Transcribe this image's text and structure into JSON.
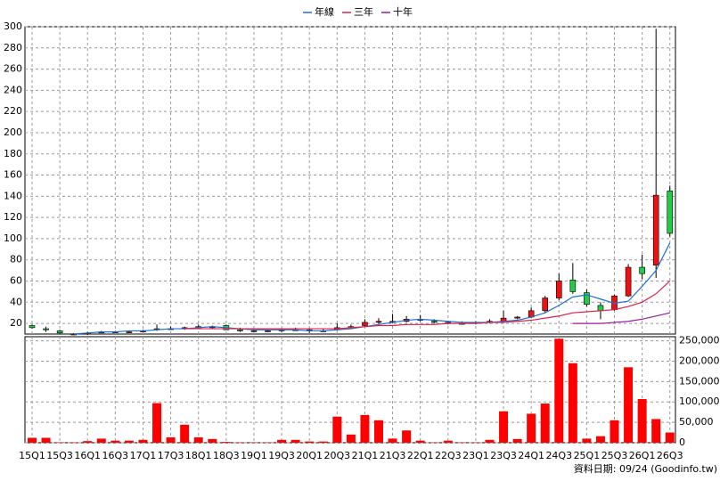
{
  "chart_data": [
    {
      "type": "candlestick",
      "categories": [
        "15Q1",
        null,
        "15Q3",
        null,
        "16Q1",
        null,
        "16Q3",
        null,
        "17Q1",
        null,
        "17Q3",
        null,
        "18Q1",
        null,
        "18Q3",
        null,
        "19Q1",
        null,
        "19Q3",
        null,
        "20Q1",
        null,
        "20Q3",
        null,
        "21Q1",
        null,
        "21Q3",
        null,
        "22Q1",
        null,
        "22Q3",
        null,
        "23Q1",
        null,
        "23Q3",
        null,
        "24Q1",
        null,
        "24Q3",
        null,
        "25Q1",
        null,
        "25Q3",
        null,
        "26Q1",
        null,
        "26Q3"
      ],
      "open": [
        18,
        15,
        13,
        10,
        10,
        11,
        12,
        12,
        12,
        14,
        15,
        15,
        16,
        16,
        18,
        14,
        13,
        13,
        13,
        14,
        14,
        13,
        14,
        16,
        18,
        21,
        21,
        22,
        23,
        22,
        21,
        20,
        20,
        21,
        22,
        25,
        26,
        32,
        44,
        61,
        49,
        37,
        33,
        46,
        73,
        75,
        145
      ],
      "high": [
        19,
        17,
        14,
        11,
        12,
        13,
        13,
        13,
        14,
        19,
        17,
        17,
        19,
        18,
        19,
        16,
        14,
        14,
        15,
        16,
        15,
        15,
        20,
        19,
        24,
        25,
        29,
        27,
        28,
        24,
        22,
        22,
        22,
        24,
        32,
        27,
        35,
        46,
        67,
        77,
        52,
        40,
        47,
        76,
        85,
        298,
        150
      ],
      "low": [
        15,
        12,
        10,
        9,
        9,
        11,
        11,
        11,
        12,
        13,
        14,
        14,
        15,
        15,
        14,
        12,
        12,
        12,
        12,
        13,
        11,
        12,
        13,
        15,
        17,
        20,
        20,
        21,
        22,
        20,
        19,
        19,
        19,
        20,
        21,
        24,
        25,
        30,
        42,
        48,
        36,
        24,
        32,
        45,
        62,
        63,
        102
      ],
      "close": [
        16,
        14,
        11,
        10,
        11,
        12,
        12,
        12,
        13,
        15,
        15,
        16,
        17,
        17,
        14,
        13,
        13,
        13,
        14,
        14,
        13,
        13,
        16,
        17,
        21,
        22,
        22,
        24,
        24,
        21,
        20,
        20,
        21,
        22,
        25,
        26,
        32,
        44,
        60,
        50,
        38,
        32,
        46,
        73,
        67,
        141,
        105
      ],
      "up_color": "#ee1111",
      "down_color": "#22cc44",
      "series": [
        {
          "name": "年線",
          "color": "#1f6fd1",
          "values": [
            null,
            null,
            null,
            10,
            11,
            12,
            12,
            13,
            13,
            14,
            15,
            15,
            16,
            17,
            16,
            15,
            14,
            14,
            14,
            14,
            13,
            13,
            14,
            15,
            17,
            19,
            21,
            23,
            24,
            23,
            22,
            21,
            21,
            21,
            22,
            23,
            26,
            30,
            37,
            45,
            47,
            43,
            39,
            41,
            55,
            70,
            96
          ]
        },
        {
          "name": "三年",
          "color": "#e0204a",
          "values": [
            null,
            null,
            null,
            null,
            null,
            null,
            null,
            null,
            null,
            null,
            null,
            15,
            15,
            15,
            15,
            15,
            15,
            15,
            15,
            15,
            15,
            15,
            15,
            16,
            17,
            18,
            18,
            19,
            19,
            19,
            20,
            20,
            20,
            21,
            21,
            22,
            23,
            25,
            27,
            30,
            31,
            32,
            33,
            36,
            40,
            48,
            60
          ]
        },
        {
          "name": "十年",
          "color": "#9a1a9a",
          "values": [
            null,
            null,
            null,
            null,
            null,
            null,
            null,
            null,
            null,
            null,
            null,
            null,
            null,
            null,
            null,
            null,
            null,
            null,
            null,
            null,
            null,
            null,
            null,
            null,
            null,
            null,
            null,
            null,
            null,
            null,
            null,
            null,
            null,
            null,
            null,
            null,
            null,
            null,
            null,
            20,
            20,
            20,
            21,
            22,
            24,
            27,
            30
          ]
        }
      ],
      "ylim": [
        10,
        300
      ],
      "yticks": [
        20,
        40,
        60,
        80,
        100,
        120,
        140,
        160,
        180,
        200,
        220,
        240,
        260,
        280,
        300
      ],
      "grid": true
    },
    {
      "type": "bar",
      "color": "#ff0000",
      "values": [
        12000,
        12000,
        1000,
        1000,
        4000,
        10000,
        5000,
        5000,
        7000,
        97000,
        13000,
        44000,
        13000,
        9000,
        2000,
        1000,
        1000,
        1000,
        7000,
        7000,
        3000,
        3000,
        64000,
        20000,
        68000,
        55000,
        10000,
        30000,
        5000,
        1000,
        5000,
        1000,
        1000,
        7000,
        77000,
        9000,
        71000,
        96000,
        255000,
        195000,
        10000,
        16000,
        55000,
        185000,
        107000,
        58000,
        25000
      ],
      "ylim": [
        0,
        260000
      ],
      "yticks": [
        0,
        {
          "value": 50000,
          "label": "50,000"
        },
        {
          "value": 100000,
          "label": "100,000"
        },
        {
          "value": 150000,
          "label": "150,000"
        },
        {
          "value": 200000,
          "label": "200,000"
        },
        {
          "value": 250000,
          "label": "250,000"
        }
      ],
      "grid": true,
      "source": "資料日期: 09/24  (Goodinfo.tw)"
    }
  ]
}
